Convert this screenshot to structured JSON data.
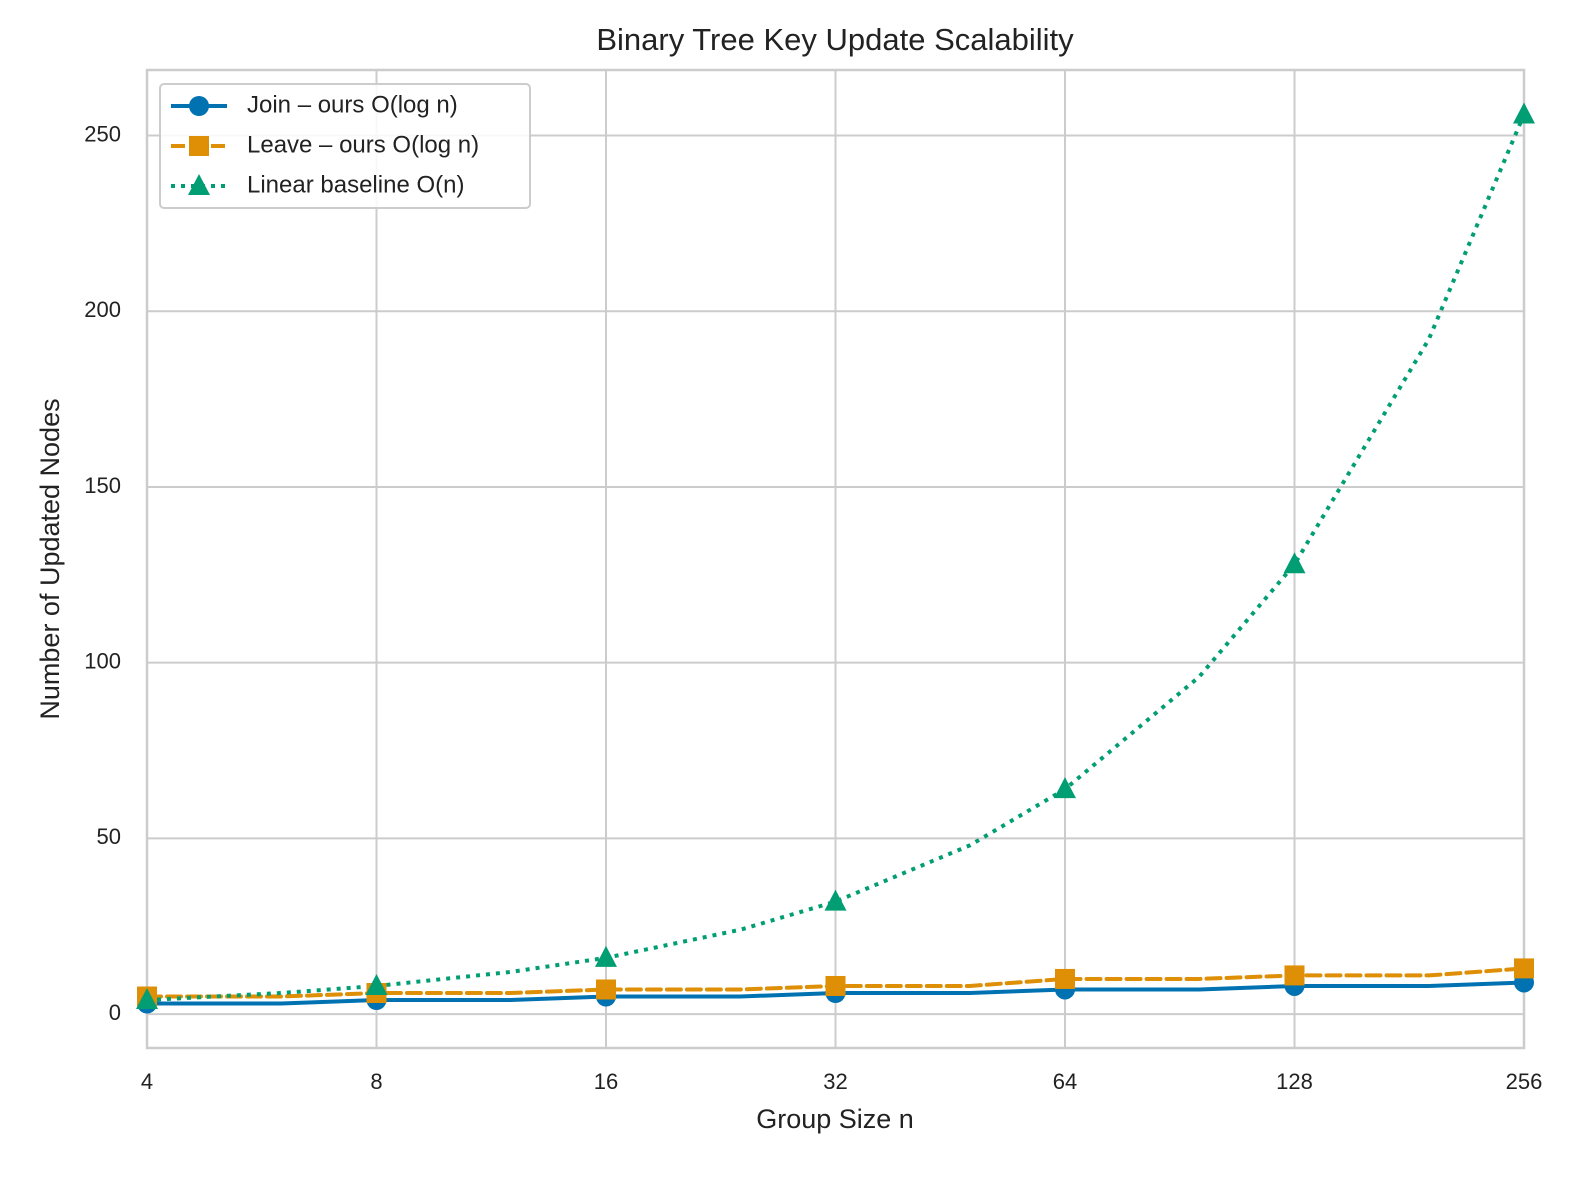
{
  "chart_data": {
    "type": "line",
    "title": "Binary Tree Key Update Scalability",
    "xlabel": "Group Size n",
    "ylabel": "Number of Updated Nodes",
    "x": [
      4,
      6,
      8,
      12,
      16,
      24,
      32,
      48,
      64,
      96,
      128,
      192,
      256
    ],
    "series": [
      {
        "name": "Join – ours  O(log n)",
        "color": "#0072b2",
        "style": "solid",
        "marker": "circle",
        "values": [
          3,
          3,
          4,
          4,
          5,
          5,
          6,
          6,
          7,
          7,
          8,
          8,
          9
        ]
      },
      {
        "name": "Leave – ours  O(log n)",
        "color": "#de8f05",
        "style": "dashed",
        "marker": "square",
        "values": [
          5,
          5,
          6,
          6,
          7,
          7,
          8,
          8,
          10,
          10,
          11,
          11,
          13
        ]
      },
      {
        "name": "Linear baseline  O(n)",
        "color": "#029e73",
        "style": "dotted",
        "marker": "triangle",
        "values": [
          4,
          6,
          8,
          12,
          16,
          24,
          32,
          48,
          64,
          96,
          128,
          192,
          256
        ]
      }
    ],
    "xscale": "log2",
    "xlim": [
      4,
      256
    ],
    "xticks": [
      4,
      8,
      16,
      32,
      64,
      128,
      256
    ],
    "ylim": [
      -9.65,
      268.65
    ],
    "yticks": [
      0,
      50,
      100,
      150,
      200,
      250
    ],
    "grid": true,
    "legend": "upper left"
  }
}
